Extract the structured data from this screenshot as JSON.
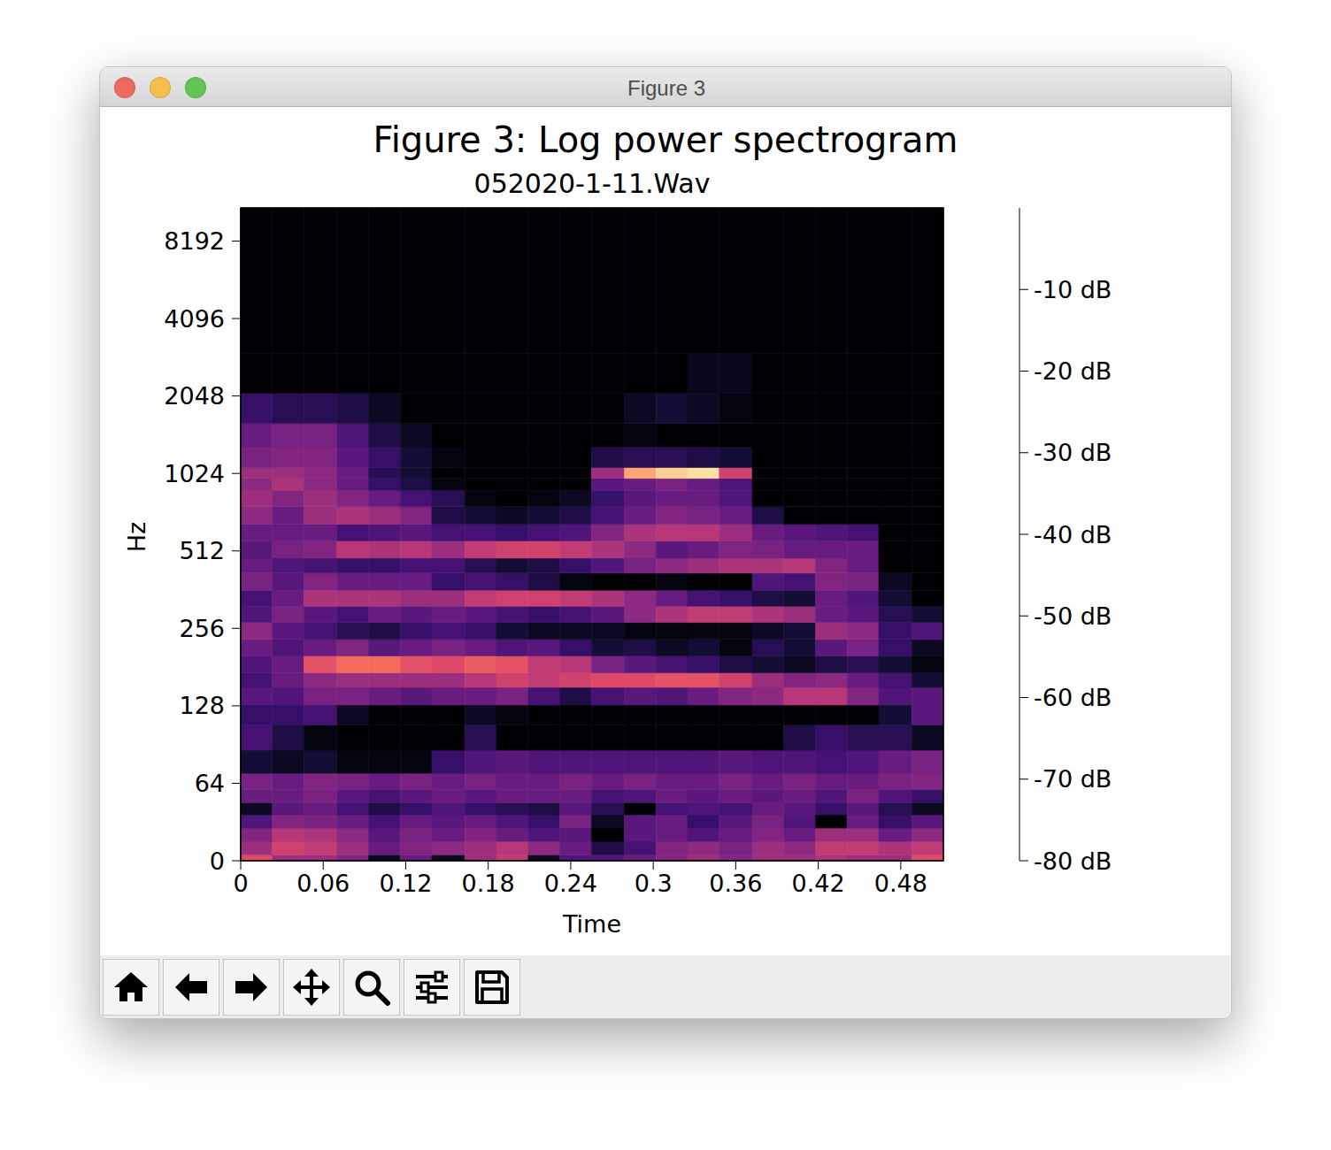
{
  "window_title": "Figure 3",
  "chart_data": {
    "type": "heatmap",
    "title": "Figure 3: Log power spectrogram",
    "subtitle": "052020-1-11.Wav",
    "x_label": "Time",
    "y_label": "Hz",
    "log": "y",
    "color": "magma",
    "xlim": [
      0,
      0.511
    ],
    "xticks": [
      0,
      0.06,
      0.12,
      0.18,
      0.24,
      0.3,
      0.36,
      0.42,
      0.48
    ],
    "ylim": [
      0,
      11025
    ],
    "yticks": [
      0,
      64,
      128,
      256,
      512,
      1024,
      2048,
      4096,
      8192
    ],
    "x_edges": [
      0,
      0.023,
      0.046,
      0.07,
      0.093,
      0.116,
      0.139,
      0.163,
      0.186,
      0.209,
      0.232,
      0.255,
      0.279,
      0.302,
      0.325,
      0.348,
      0.372,
      0.395,
      0.418,
      0.441,
      0.464,
      0.488,
      0.511
    ],
    "y_edges": [
      0,
      5,
      16,
      27,
      38,
      48,
      59,
      70,
      86,
      108,
      129,
      151,
      172,
      200,
      232,
      270,
      312,
      360,
      420,
      480,
      560,
      650,
      760,
      880,
      980,
      1080,
      1300,
      1600,
      2100,
      3000,
      11025
    ],
    "cells": [
      [
        -32,
        -45,
        -45,
        -50,
        -75,
        -55,
        -75,
        -45,
        -38,
        -75,
        -60,
        -60,
        -55,
        -50,
        -45,
        -50,
        -45,
        -45,
        -42,
        -45,
        -45,
        -32
      ],
      [
        -45,
        -35,
        -38,
        -45,
        -55,
        -50,
        -48,
        -45,
        -40,
        -48,
        -55,
        -70,
        -62,
        -50,
        -48,
        -52,
        -45,
        -48,
        -38,
        -38,
        -42,
        -38
      ],
      [
        -50,
        -40,
        -42,
        -48,
        -58,
        -52,
        -55,
        -50,
        -55,
        -60,
        -58,
        -80,
        -58,
        -55,
        -60,
        -55,
        -50,
        -55,
        -45,
        -45,
        -55,
        -48
      ],
      [
        -60,
        -50,
        -52,
        -55,
        -62,
        -55,
        -58,
        -55,
        -60,
        -65,
        -52,
        -75,
        -58,
        -55,
        -65,
        -58,
        -52,
        -60,
        -80,
        -55,
        -65,
        -58
      ],
      [
        -75,
        -58,
        -55,
        -62,
        -70,
        -65,
        -60,
        -65,
        -68,
        -70,
        -58,
        -68,
        -80,
        -62,
        -60,
        -62,
        -55,
        -58,
        -65,
        -58,
        -68,
        -75
      ],
      [
        -55,
        -55,
        -52,
        -58,
        -62,
        -58,
        -55,
        -58,
        -55,
        -55,
        -55,
        -62,
        -60,
        -55,
        -58,
        -55,
        -58,
        -55,
        -60,
        -52,
        -60,
        -65
      ],
      [
        -52,
        -55,
        -50,
        -52,
        -55,
        -52,
        -55,
        -52,
        -55,
        -55,
        -52,
        -55,
        -52,
        -55,
        -55,
        -52,
        -55,
        -52,
        -55,
        -55,
        -52,
        -50
      ],
      [
        -72,
        -75,
        -72,
        -78,
        -78,
        -78,
        -65,
        -60,
        -58,
        -60,
        -60,
        -60,
        -60,
        -60,
        -60,
        -58,
        -60,
        -60,
        -62,
        -60,
        -55,
        -52
      ],
      [
        -62,
        -70,
        -78,
        -80,
        -80,
        -80,
        -80,
        -68,
        -80,
        -80,
        -80,
        -80,
        -80,
        -80,
        -80,
        -80,
        -80,
        -70,
        -65,
        -68,
        -68,
        -75
      ],
      [
        -65,
        -65,
        -62,
        -75,
        -80,
        -80,
        -80,
        -75,
        -78,
        -80,
        -80,
        -80,
        -80,
        -80,
        -80,
        -80,
        -80,
        -80,
        -80,
        -80,
        -72,
        -58
      ],
      [
        -58,
        -60,
        -52,
        -52,
        -55,
        -58,
        -55,
        -55,
        -52,
        -62,
        -70,
        -62,
        -58,
        -60,
        -55,
        -50,
        -48,
        -40,
        -40,
        -50,
        -60,
        -58
      ],
      [
        -62,
        -55,
        -48,
        -45,
        -45,
        -45,
        -45,
        -40,
        -35,
        -38,
        -35,
        -32,
        -32,
        -30,
        -30,
        -35,
        -45,
        -50,
        -48,
        -55,
        -62,
        -72
      ],
      [
        -60,
        -55,
        -30,
        -25,
        -25,
        -30,
        -32,
        -28,
        -30,
        -38,
        -40,
        -52,
        -58,
        -62,
        -65,
        -70,
        -72,
        -75,
        -70,
        -68,
        -72,
        -78
      ],
      [
        -55,
        -60,
        -55,
        -50,
        -58,
        -55,
        -52,
        -55,
        -60,
        -58,
        -65,
        -72,
        -70,
        -75,
        -72,
        -78,
        -68,
        -72,
        -58,
        -52,
        -65,
        -75
      ],
      [
        -48,
        -58,
        -62,
        -68,
        -70,
        -65,
        -62,
        -65,
        -72,
        -75,
        -75,
        -75,
        -78,
        -78,
        -78,
        -78,
        -75,
        -72,
        -45,
        -48,
        -65,
        -60
      ],
      [
        -60,
        -52,
        -58,
        -62,
        -55,
        -58,
        -55,
        -58,
        -62,
        -65,
        -62,
        -58,
        -48,
        -42,
        -38,
        -38,
        -42,
        -45,
        -55,
        -58,
        -68,
        -72
      ],
      [
        -62,
        -55,
        -42,
        -42,
        -42,
        -45,
        -45,
        -38,
        -35,
        -35,
        -38,
        -42,
        -48,
        -55,
        -62,
        -65,
        -70,
        -72,
        -55,
        -60,
        -72,
        -80
      ],
      [
        -52,
        -58,
        -50,
        -55,
        -55,
        -55,
        -65,
        -62,
        -65,
        -70,
        -78,
        -80,
        -80,
        -78,
        -80,
        -80,
        -60,
        -62,
        -50,
        -52,
        -75,
        -80
      ],
      [
        -55,
        -60,
        -62,
        -65,
        -65,
        -62,
        -62,
        -68,
        -72,
        -70,
        -65,
        -60,
        -52,
        -48,
        -45,
        -42,
        -42,
        -40,
        -50,
        -55,
        -80,
        -80
      ],
      [
        -58,
        -52,
        -50,
        -40,
        -42,
        -40,
        -45,
        -38,
        -35,
        -35,
        -38,
        -42,
        -48,
        -58,
        -55,
        -50,
        -52,
        -55,
        -55,
        -55,
        -80,
        -80
      ],
      [
        -55,
        -55,
        -55,
        -62,
        -60,
        -58,
        -62,
        -62,
        -65,
        -62,
        -60,
        -50,
        -42,
        -40,
        -40,
        -45,
        -55,
        -58,
        -60,
        -62,
        -80,
        -80
      ],
      [
        -48,
        -55,
        -45,
        -42,
        -45,
        -50,
        -70,
        -72,
        -75,
        -72,
        -70,
        -62,
        -55,
        -50,
        -52,
        -55,
        -70,
        -80,
        -80,
        -80,
        -80,
        -80
      ],
      [
        -45,
        -50,
        -45,
        -50,
        -55,
        -62,
        -68,
        -78,
        -80,
        -78,
        -75,
        -65,
        -58,
        -55,
        -55,
        -60,
        -80,
        -80,
        -80,
        -80,
        -80,
        -80
      ],
      [
        -48,
        -42,
        -48,
        -55,
        -65,
        -70,
        -78,
        -80,
        -80,
        -80,
        -80,
        -58,
        -55,
        -52,
        -55,
        -60,
        -80,
        -80,
        -80,
        -80,
        -80,
        -80
      ],
      [
        -45,
        -45,
        -48,
        -55,
        -68,
        -72,
        -80,
        -80,
        -80,
        -80,
        -80,
        -45,
        -15,
        -8,
        -5,
        -35,
        -80,
        -80,
        -80,
        -80,
        -80,
        -80
      ],
      [
        -52,
        -50,
        -50,
        -58,
        -65,
        -72,
        -78,
        -80,
        -80,
        -80,
        -80,
        -70,
        -68,
        -68,
        -70,
        -72,
        -80,
        -80,
        -80,
        -80,
        -80,
        -80
      ],
      [
        -55,
        -52,
        -52,
        -60,
        -70,
        -75,
        -80,
        -80,
        -80,
        -80,
        -80,
        -80,
        -78,
        -80,
        -80,
        -80,
        -80,
        -80,
        -80,
        -80,
        -80,
        -80
      ],
      [
        -65,
        -68,
        -68,
        -70,
        -75,
        -80,
        -80,
        -80,
        -80,
        -80,
        -80,
        -80,
        -75,
        -72,
        -75,
        -78,
        -80,
        -80,
        -80,
        -80,
        -80,
        -80
      ],
      [
        -80,
        -80,
        -80,
        -80,
        -80,
        -80,
        -80,
        -80,
        -80,
        -80,
        -80,
        -80,
        -80,
        -80,
        -76,
        -76,
        -80,
        -80,
        -80,
        -80,
        -80,
        -80
      ],
      [
        -80,
        -80,
        -80,
        -80,
        -80,
        -80,
        -80,
        -80,
        -80,
        -80,
        -80,
        -80,
        -80,
        -80,
        -80,
        -80,
        -80,
        -80,
        -80,
        -80,
        -80,
        -80
      ]
    ],
    "colorbar": {
      "range": [
        -80,
        0
      ],
      "ticks": [
        {
          "value": -10,
          "label": "-10 dB"
        },
        {
          "value": -20,
          "label": "-20 dB"
        },
        {
          "value": -30,
          "label": "-30 dB"
        },
        {
          "value": -40,
          "label": "-40 dB"
        },
        {
          "value": -50,
          "label": "-50 dB"
        },
        {
          "value": -60,
          "label": "-60 dB"
        },
        {
          "value": -70,
          "label": "-70 dB"
        },
        {
          "value": -80,
          "label": "-80 dB"
        }
      ]
    }
  }
}
